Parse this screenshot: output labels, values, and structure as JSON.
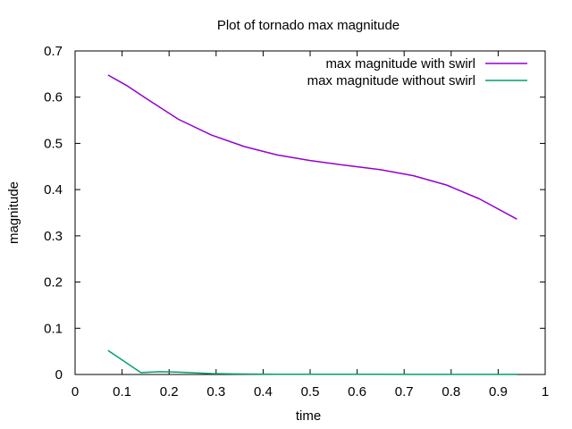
{
  "chart_data": {
    "type": "line",
    "title": "Plot of tornado max magnitude",
    "xlabel": "time",
    "ylabel": "magnitude",
    "xlim": [
      0,
      1
    ],
    "ylim": [
      0,
      0.7
    ],
    "xticks": [
      0,
      0.1,
      0.2,
      0.3,
      0.4,
      0.5,
      0.6,
      0.7,
      0.8,
      0.9,
      1
    ],
    "xtick_labels": [
      "0",
      "0.1",
      "0.2",
      "0.3",
      "0.4",
      "0.5",
      "0.6",
      "0.7",
      "0.8",
      "0.9",
      "1"
    ],
    "yticks": [
      0,
      0.1,
      0.2,
      0.3,
      0.4,
      0.5,
      0.6,
      0.7
    ],
    "ytick_labels": [
      "0",
      "0.1",
      "0.2",
      "0.3",
      "0.4",
      "0.5",
      "0.6",
      "0.7"
    ],
    "grid": false,
    "legend_position": "top-right",
    "series": [
      {
        "name": "max magnitude with swirl",
        "color": "#9400d3",
        "x": [
          0.07,
          0.11,
          0.15,
          0.22,
          0.29,
          0.36,
          0.43,
          0.5,
          0.58,
          0.65,
          0.72,
          0.79,
          0.86,
          0.94
        ],
        "y": [
          0.648,
          0.625,
          0.598,
          0.552,
          0.518,
          0.493,
          0.475,
          0.463,
          0.452,
          0.443,
          0.43,
          0.41,
          0.38,
          0.336
        ]
      },
      {
        "name": "max magnitude without swirl",
        "color": "#009e73",
        "x": [
          0.07,
          0.14,
          0.18,
          0.22,
          0.29,
          0.36,
          0.43,
          0.5,
          0.58,
          0.65,
          0.72,
          0.79,
          0.86,
          0.94
        ],
        "y": [
          0.052,
          0.004,
          0.006,
          0.005,
          0.002,
          0.001,
          0.0005,
          0.0004,
          0.0003,
          0.0003,
          0.0002,
          0.0002,
          0.0002,
          0.0002
        ]
      }
    ]
  }
}
